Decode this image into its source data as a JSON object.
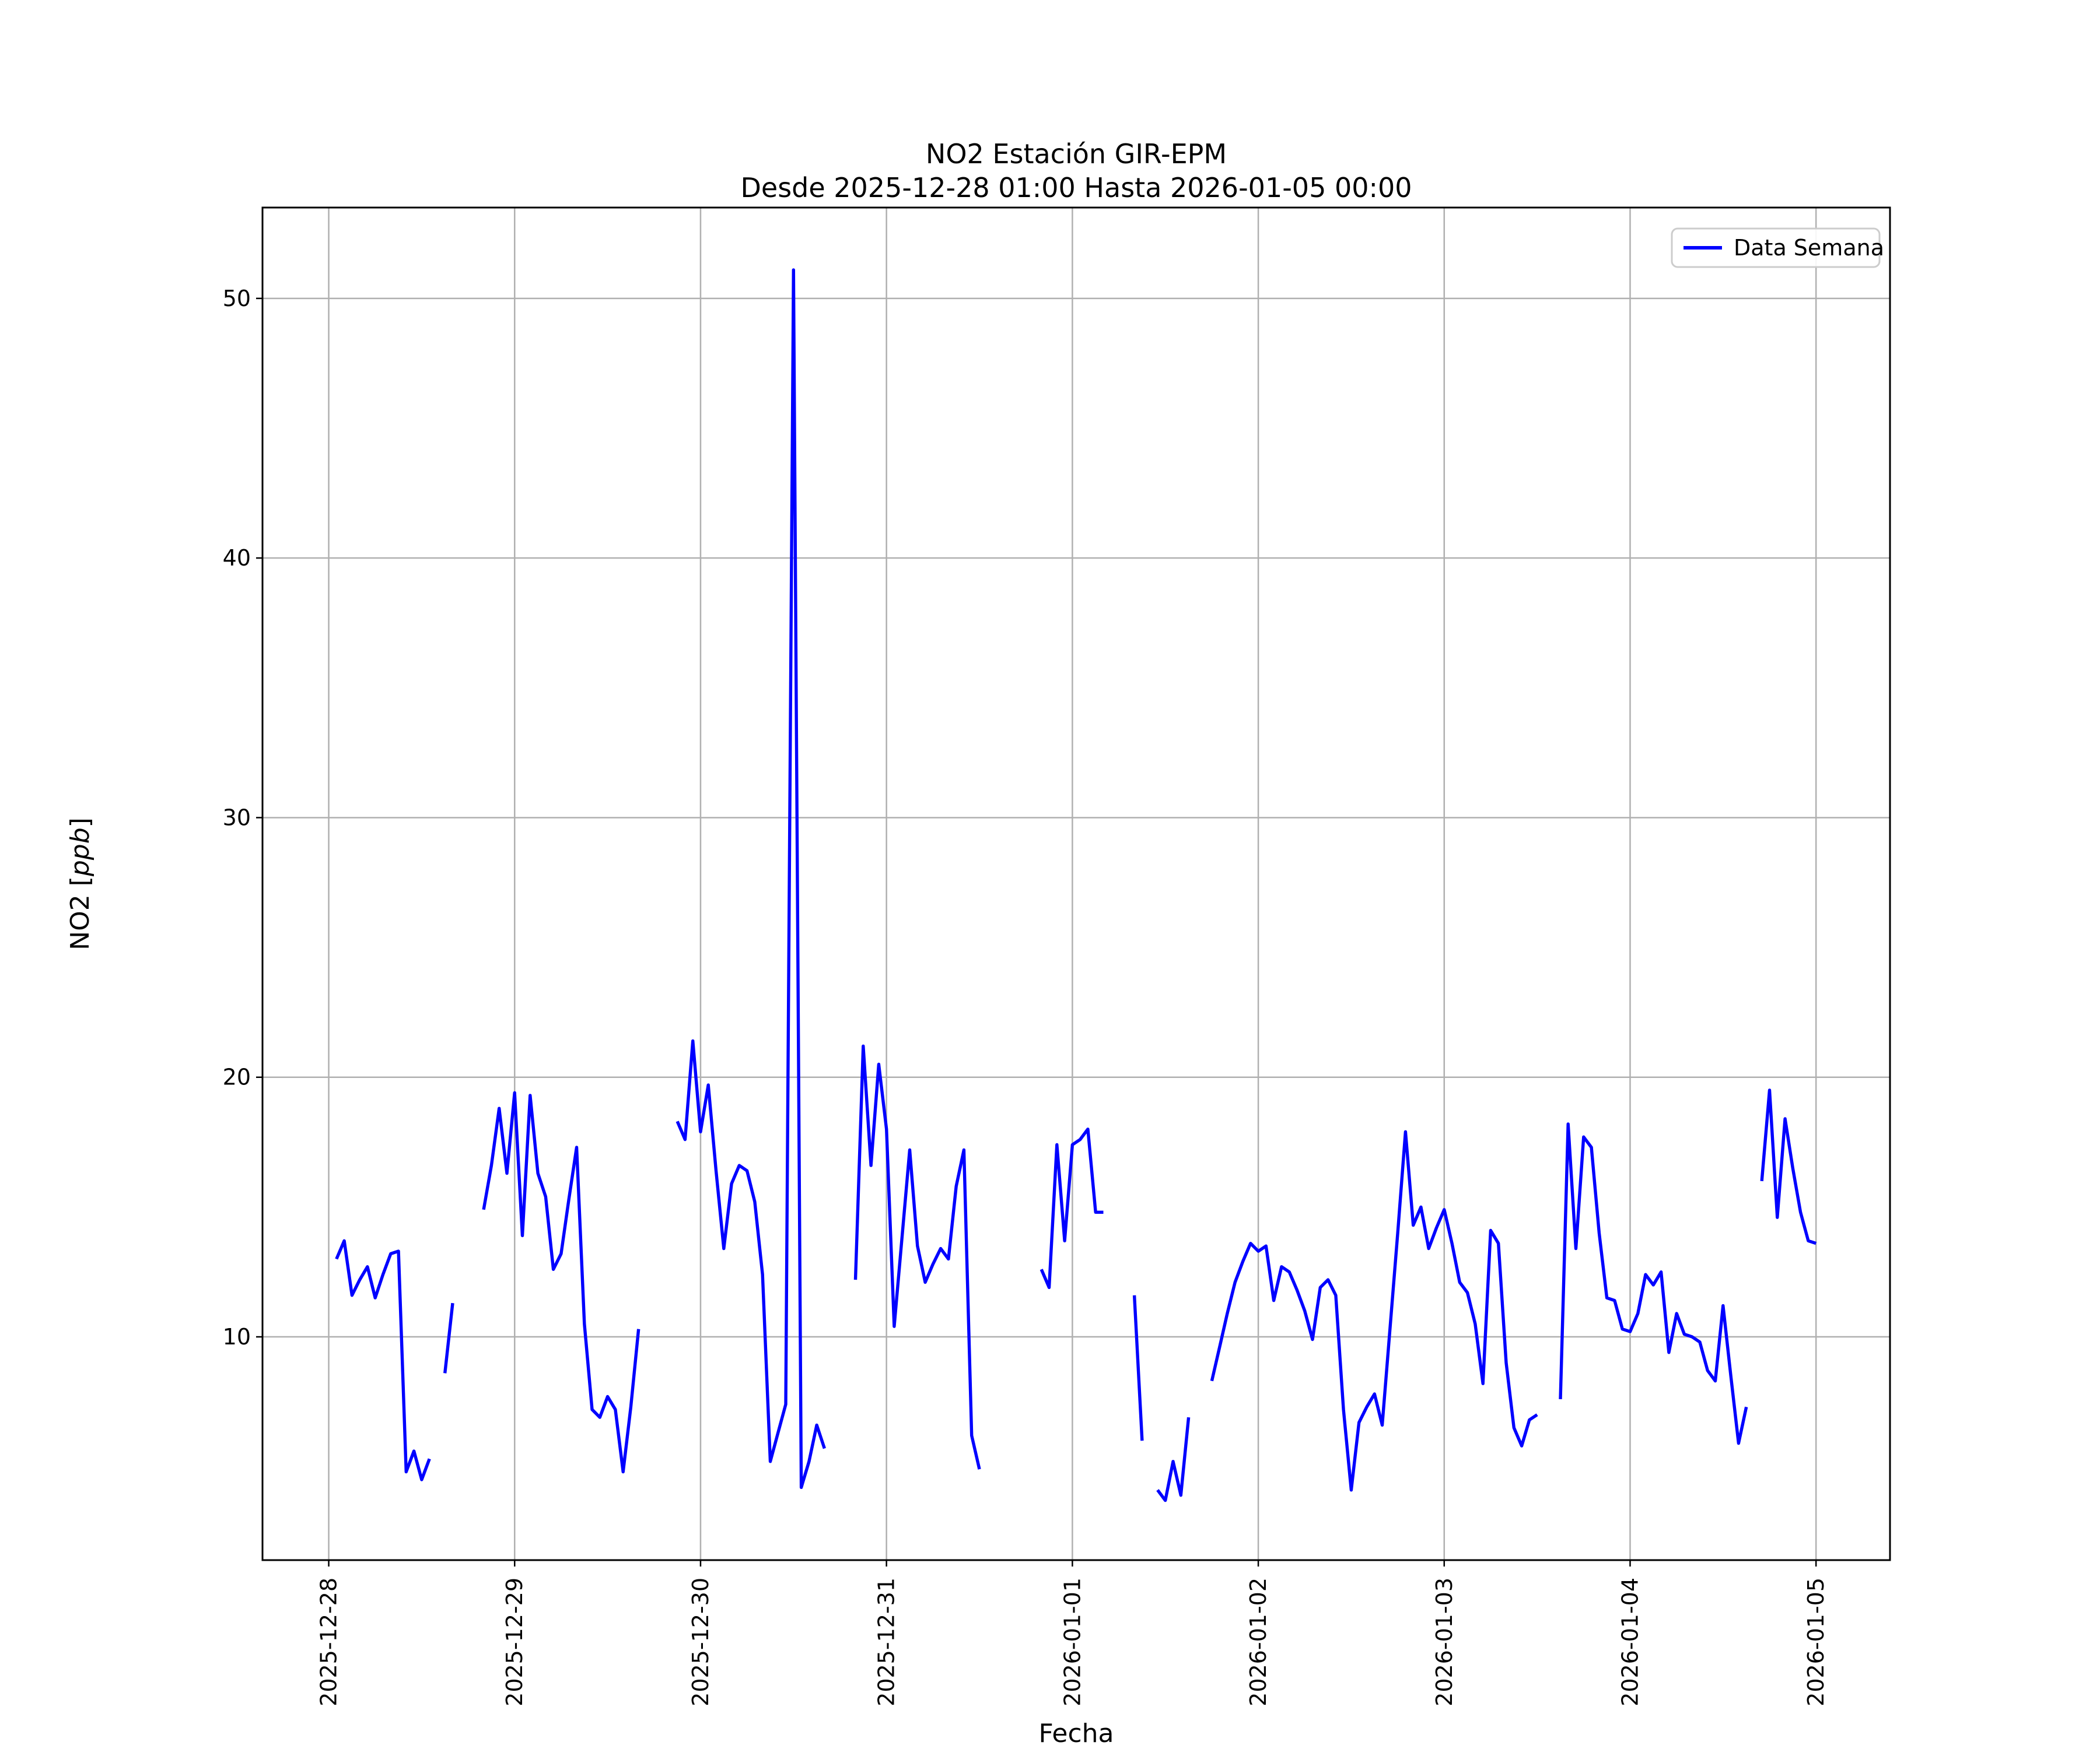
{
  "figure": {
    "title_line1": "NO2 Estación GIR-EPM",
    "title_line2": "Desde 2025-12-28 01:00 Hasta 2026-01-05 00:00"
  },
  "legend": {
    "label": "Data Semana"
  },
  "axes": {
    "xlabel": "Fecha",
    "ylabel_prefix": "NO2 [",
    "ylabel_italic": "ppb",
    "ylabel_suffix": "]",
    "x_tick_labels": [
      "2025-12-28",
      "2025-12-29",
      "2025-12-30",
      "2025-12-31",
      "2026-01-01",
      "2026-01-02",
      "2026-01-03",
      "2026-01-04",
      "2026-01-05"
    ],
    "y_tick_labels": [
      "10",
      "20",
      "30",
      "40",
      "50"
    ]
  },
  "colors": {
    "line": "#0000ff",
    "grid": "#b0b0b0",
    "frame": "#000000",
    "legend_border": "#cccccc",
    "background": "#ffffff"
  },
  "chart_data": {
    "type": "line",
    "title": "NO2 Estación GIR-EPM",
    "subtitle": "Desde 2025-12-28 01:00 Hasta 2026-01-05 00:00",
    "xlabel": "Fecha",
    "ylabel": "NO2 [ppb]",
    "grid": true,
    "legend_position": "upper right",
    "x_tick_hours": [
      0,
      24,
      48,
      72,
      96,
      120,
      144,
      168,
      192
    ],
    "x_tick_labels": [
      "2025-12-28",
      "2025-12-29",
      "2025-12-30",
      "2025-12-31",
      "2026-01-01",
      "2026-01-02",
      "2026-01-03",
      "2026-01-04",
      "2026-01-05"
    ],
    "yticks": [
      10,
      20,
      30,
      40,
      50
    ],
    "xlim_hours": [
      -8.55,
      201.55
    ],
    "ylim": [
      1.4,
      53.5
    ],
    "series": [
      {
        "name": "Data Semana",
        "color": "#0000ff",
        "start_time": "2025-12-28 01:00",
        "interval_hours": 1,
        "first_hour_index": 1,
        "values": [
          13.0,
          13.7,
          11.6,
          12.2,
          12.7,
          11.5,
          12.4,
          13.2,
          13.3,
          4.8,
          5.6,
          4.5,
          5.3,
          null,
          8.6,
          11.3,
          null,
          null,
          null,
          14.9,
          16.6,
          18.8,
          16.3,
          19.4,
          13.9,
          19.3,
          16.3,
          15.4,
          12.6,
          13.2,
          15.3,
          17.3,
          10.5,
          7.2,
          6.9,
          7.7,
          7.2,
          4.8,
          7.3,
          10.3,
          null,
          null,
          null,
          null,
          18.3,
          17.6,
          21.4,
          17.9,
          19.7,
          16.4,
          13.4,
          15.9,
          16.6,
          16.4,
          15.2,
          12.4,
          5.2,
          6.3,
          7.4,
          51.1,
          4.2,
          5.2,
          6.6,
          5.7,
          null,
          null,
          null,
          12.2,
          21.2,
          16.6,
          20.5,
          18.0,
          10.4,
          13.8,
          17.2,
          13.5,
          12.1,
          12.8,
          13.4,
          13.0,
          15.8,
          17.2,
          6.2,
          4.9,
          null,
          null,
          null,
          null,
          null,
          null,
          null,
          12.6,
          11.9,
          17.4,
          13.7,
          17.4,
          17.6,
          18.0,
          14.8,
          14.8,
          null,
          null,
          null,
          11.6,
          6.0,
          null,
          4.1,
          3.7,
          5.2,
          3.9,
          6.9,
          null,
          null,
          8.3,
          9.6,
          10.9,
          12.1,
          12.9,
          13.6,
          13.3,
          13.5,
          11.4,
          12.7,
          12.5,
          11.8,
          11.0,
          9.9,
          11.9,
          12.2,
          11.6,
          7.2,
          4.1,
          6.7,
          7.3,
          7.8,
          6.6,
          10.3,
          14.0,
          17.9,
          14.3,
          15.0,
          13.4,
          14.2,
          14.9,
          13.6,
          12.1,
          11.7,
          10.5,
          8.2,
          14.1,
          13.6,
          9.0,
          6.5,
          5.8,
          6.8,
          7.0,
          null,
          null,
          7.6,
          18.2,
          13.4,
          17.7,
          17.3,
          14.0,
          11.5,
          11.4,
          10.3,
          10.2,
          10.9,
          12.4,
          12.0,
          12.5,
          9.4,
          10.9,
          10.1,
          10.0,
          9.8,
          8.7,
          8.3,
          11.2,
          8.5,
          5.9,
          7.3,
          null,
          16.0,
          19.5,
          14.6,
          18.4,
          16.5,
          14.8,
          13.7,
          13.6
        ]
      }
    ]
  }
}
